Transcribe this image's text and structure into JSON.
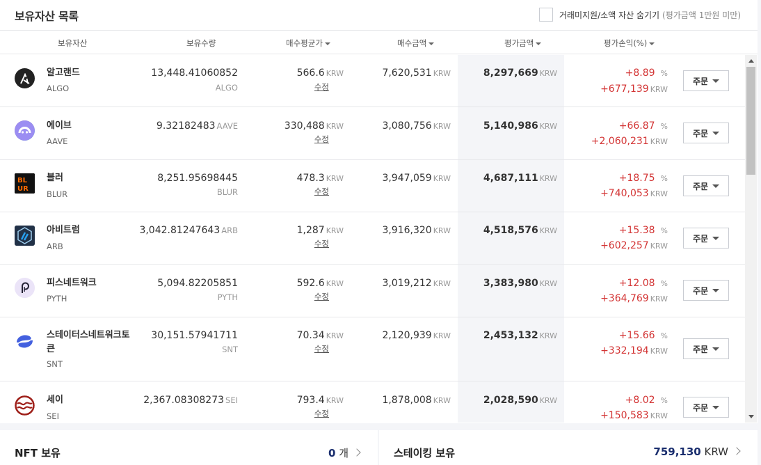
{
  "header": {
    "title": "보유자산 목록",
    "hide_label": "거래미지원/소액 자산 숨기기",
    "hide_note": "(평가금액 1만원 미만)"
  },
  "columns": {
    "asset": "보유자산",
    "quantity": "보유수량",
    "avg_price": "매수평균가",
    "buy_amount": "매수금액",
    "eval_amount": "평가금액",
    "profit": "평가손익(%)"
  },
  "units": {
    "krw": "KRW",
    "pct": "%"
  },
  "labels": {
    "edit": "수정",
    "order": "주문"
  },
  "colors": {
    "profit": "#d33434",
    "highlight_column": "#f4f5f8",
    "staking_value": "#1a2e6e"
  },
  "rows": [
    {
      "name": "알고랜드",
      "symbol": "ALGO",
      "icon": "algorand-icon",
      "quantity": "13,448.41060852",
      "qty_unit": "ALGO",
      "avg": "566.6",
      "buy": "7,620,531",
      "eval": "8,297,669",
      "rate": "+8.89",
      "profit": "+677,139"
    },
    {
      "name": "에이브",
      "symbol": "AAVE",
      "icon": "aave-icon",
      "quantity": "9.32182483",
      "qty_unit": "AAVE",
      "avg": "330,488",
      "buy": "3,080,756",
      "eval": "5,140,986",
      "rate": "+66.87",
      "profit": "+2,060,231"
    },
    {
      "name": "블러",
      "symbol": "BLUR",
      "icon": "blur-icon",
      "quantity": "8,251.95698445",
      "qty_unit": "BLUR",
      "avg": "478.3",
      "buy": "3,947,059",
      "eval": "4,687,111",
      "rate": "+18.75",
      "profit": "+740,053"
    },
    {
      "name": "아비트럼",
      "symbol": "ARB",
      "icon": "arbitrum-icon",
      "quantity": "3,042.81247643",
      "qty_unit": "ARB",
      "avg": "1,287",
      "buy": "3,916,320",
      "eval": "4,518,576",
      "rate": "+15.38",
      "profit": "+602,257"
    },
    {
      "name": "피스네트워크",
      "symbol": "PYTH",
      "icon": "pyth-icon",
      "quantity": "5,094.82205851",
      "qty_unit": "PYTH",
      "avg": "592.6",
      "buy": "3,019,212",
      "eval": "3,383,980",
      "rate": "+12.08",
      "profit": "+364,769"
    },
    {
      "name": "스테이터스네트워크토큰",
      "symbol": "SNT",
      "icon": "status-icon",
      "quantity": "30,151.57941711",
      "qty_unit": "SNT",
      "avg": "70.34",
      "buy": "2,120,939",
      "eval": "2,453,132",
      "rate": "+15.66",
      "profit": "+332,194"
    },
    {
      "name": "세이",
      "symbol": "SEI",
      "icon": "sei-icon",
      "quantity": "2,367.08308273",
      "qty_unit": "SEI",
      "avg": "793.4",
      "buy": "1,878,008",
      "eval": "2,028,590",
      "rate": "+8.02",
      "profit": "+150,583"
    }
  ],
  "nft": {
    "title": "NFT 보유",
    "count": "0",
    "unit": "개"
  },
  "staking": {
    "title": "스테이킹 보유",
    "value": "759,130",
    "unit": "KRW"
  }
}
